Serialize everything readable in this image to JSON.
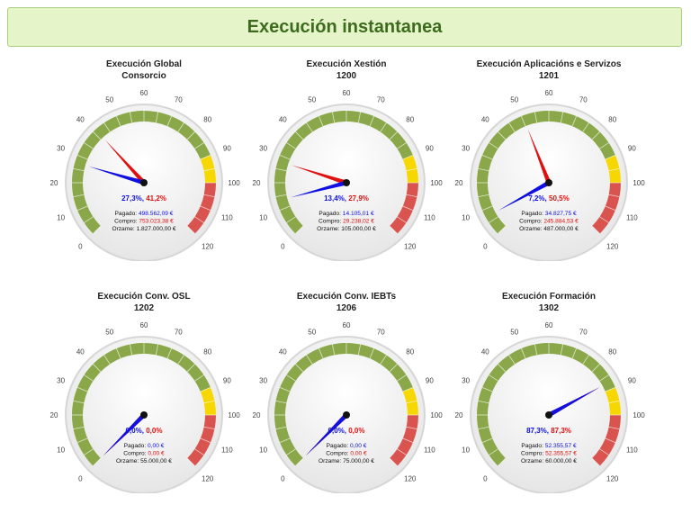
{
  "page": {
    "title": "Execución instantanea"
  },
  "colors": {
    "pagado": "#1010e0",
    "compro": "#e01010",
    "band_green": "#8aa84a",
    "band_yellow": "#f6d800",
    "band_red": "#d9534f"
  },
  "chart_data": [
    {
      "type": "gauge",
      "title": "Execución Global",
      "code": "Consorcio",
      "range": [
        0,
        120
      ],
      "ticks": [
        "0",
        "10",
        "20",
        "30",
        "40",
        "50",
        "60",
        "70",
        "80",
        "90",
        "100",
        "110",
        "120"
      ],
      "bands": [
        {
          "from": 0,
          "to": 90,
          "color": "green"
        },
        {
          "from": 90,
          "to": 100,
          "color": "yellow"
        },
        {
          "from": 100,
          "to": 120,
          "color": "red"
        }
      ],
      "series": [
        {
          "name": "Pagado",
          "value": 27.3
        },
        {
          "name": "Compro",
          "value": 41.2
        }
      ],
      "pct_pagado": "27,3%",
      "pct_compro": "41,2%",
      "pagado_label": "Pagado:",
      "pagado": "498.562,09 €",
      "compro_label": "Compro:",
      "compro": "753.023,38 €",
      "orzame_label": "Orzame:",
      "orzame": "1.827.000,00 €"
    },
    {
      "type": "gauge",
      "title": "Execución Xestión",
      "code": "1200",
      "range": [
        0,
        120
      ],
      "ticks": [
        "0",
        "10",
        "20",
        "30",
        "40",
        "50",
        "60",
        "70",
        "80",
        "90",
        "100",
        "110",
        "120"
      ],
      "bands": [
        {
          "from": 0,
          "to": 90,
          "color": "green"
        },
        {
          "from": 90,
          "to": 100,
          "color": "yellow"
        },
        {
          "from": 100,
          "to": 120,
          "color": "red"
        }
      ],
      "series": [
        {
          "name": "Pagado",
          "value": 13.4
        },
        {
          "name": "Compro",
          "value": 27.9
        }
      ],
      "pct_pagado": "13,4%",
      "pct_compro": "27,9%",
      "pagado_label": "Pagado:",
      "pagado": "14.105,01 €",
      "compro_label": "Compro:",
      "compro": "29.238,02 €",
      "orzame_label": "Orzame:",
      "orzame": "105.000,00 €"
    },
    {
      "type": "gauge",
      "title": "Execución Aplicacións e Servizos",
      "code": "1201",
      "range": [
        0,
        120
      ],
      "ticks": [
        "0",
        "10",
        "20",
        "30",
        "40",
        "50",
        "60",
        "70",
        "80",
        "90",
        "100",
        "110",
        "120"
      ],
      "bands": [
        {
          "from": 0,
          "to": 90,
          "color": "green"
        },
        {
          "from": 90,
          "to": 100,
          "color": "yellow"
        },
        {
          "from": 100,
          "to": 120,
          "color": "red"
        }
      ],
      "series": [
        {
          "name": "Pagado",
          "value": 7.2
        },
        {
          "name": "Compro",
          "value": 50.5
        }
      ],
      "pct_pagado": "7,2%",
      "pct_compro": "50,5%",
      "pagado_label": "Pagado:",
      "pagado": "34.827,75 €",
      "compro_label": "Compro:",
      "compro": "245.884,53 €",
      "orzame_label": "Orzame:",
      "orzame": "487.000,00 €"
    },
    {
      "type": "gauge",
      "title": "Execución Conv. OSL",
      "code": "1202",
      "range": [
        0,
        120
      ],
      "ticks": [
        "0",
        "10",
        "20",
        "30",
        "40",
        "50",
        "60",
        "70",
        "80",
        "90",
        "100",
        "110",
        "120"
      ],
      "bands": [
        {
          "from": 0,
          "to": 90,
          "color": "green"
        },
        {
          "from": 90,
          "to": 100,
          "color": "yellow"
        },
        {
          "from": 100,
          "to": 120,
          "color": "red"
        }
      ],
      "series": [
        {
          "name": "Pagado",
          "value": 0.0
        },
        {
          "name": "Compro",
          "value": 0.0
        }
      ],
      "pct_pagado": "0,0%",
      "pct_compro": "0,0%",
      "pagado_label": "Pagado:",
      "pagado": "0,00 €",
      "compro_label": "Compro:",
      "compro": "0,00 €",
      "orzame_label": "Orzame:",
      "orzame": "55.000,00 €"
    },
    {
      "type": "gauge",
      "title": "Execución Conv. IEBTs",
      "code": "1206",
      "range": [
        0,
        120
      ],
      "ticks": [
        "0",
        "10",
        "20",
        "30",
        "40",
        "50",
        "60",
        "70",
        "80",
        "90",
        "100",
        "110",
        "120"
      ],
      "bands": [
        {
          "from": 0,
          "to": 90,
          "color": "green"
        },
        {
          "from": 90,
          "to": 100,
          "color": "yellow"
        },
        {
          "from": 100,
          "to": 120,
          "color": "red"
        }
      ],
      "series": [
        {
          "name": "Pagado",
          "value": 0.0
        },
        {
          "name": "Compro",
          "value": 0.0
        }
      ],
      "pct_pagado": "0,0%",
      "pct_compro": "0,0%",
      "pagado_label": "Pagado:",
      "pagado": "0,00 €",
      "compro_label": "Compro:",
      "compro": "0,00 €",
      "orzame_label": "Orzame:",
      "orzame": "75.000,00 €"
    },
    {
      "type": "gauge",
      "title": "Execución Formación",
      "code": "1302",
      "range": [
        0,
        120
      ],
      "ticks": [
        "0",
        "10",
        "20",
        "30",
        "40",
        "50",
        "60",
        "70",
        "80",
        "90",
        "100",
        "110",
        "120"
      ],
      "bands": [
        {
          "from": 0,
          "to": 90,
          "color": "green"
        },
        {
          "from": 90,
          "to": 100,
          "color": "yellow"
        },
        {
          "from": 100,
          "to": 120,
          "color": "red"
        }
      ],
      "series": [
        {
          "name": "Pagado",
          "value": 87.3
        },
        {
          "name": "Compro",
          "value": 87.3
        }
      ],
      "pct_pagado": "87,3%",
      "pct_compro": "87,3%",
      "pagado_label": "Pagado:",
      "pagado": "52.355,57 €",
      "compro_label": "Compro:",
      "compro": "52.355,57 €",
      "orzame_label": "Orzame:",
      "orzame": "60.000,00 €"
    }
  ]
}
